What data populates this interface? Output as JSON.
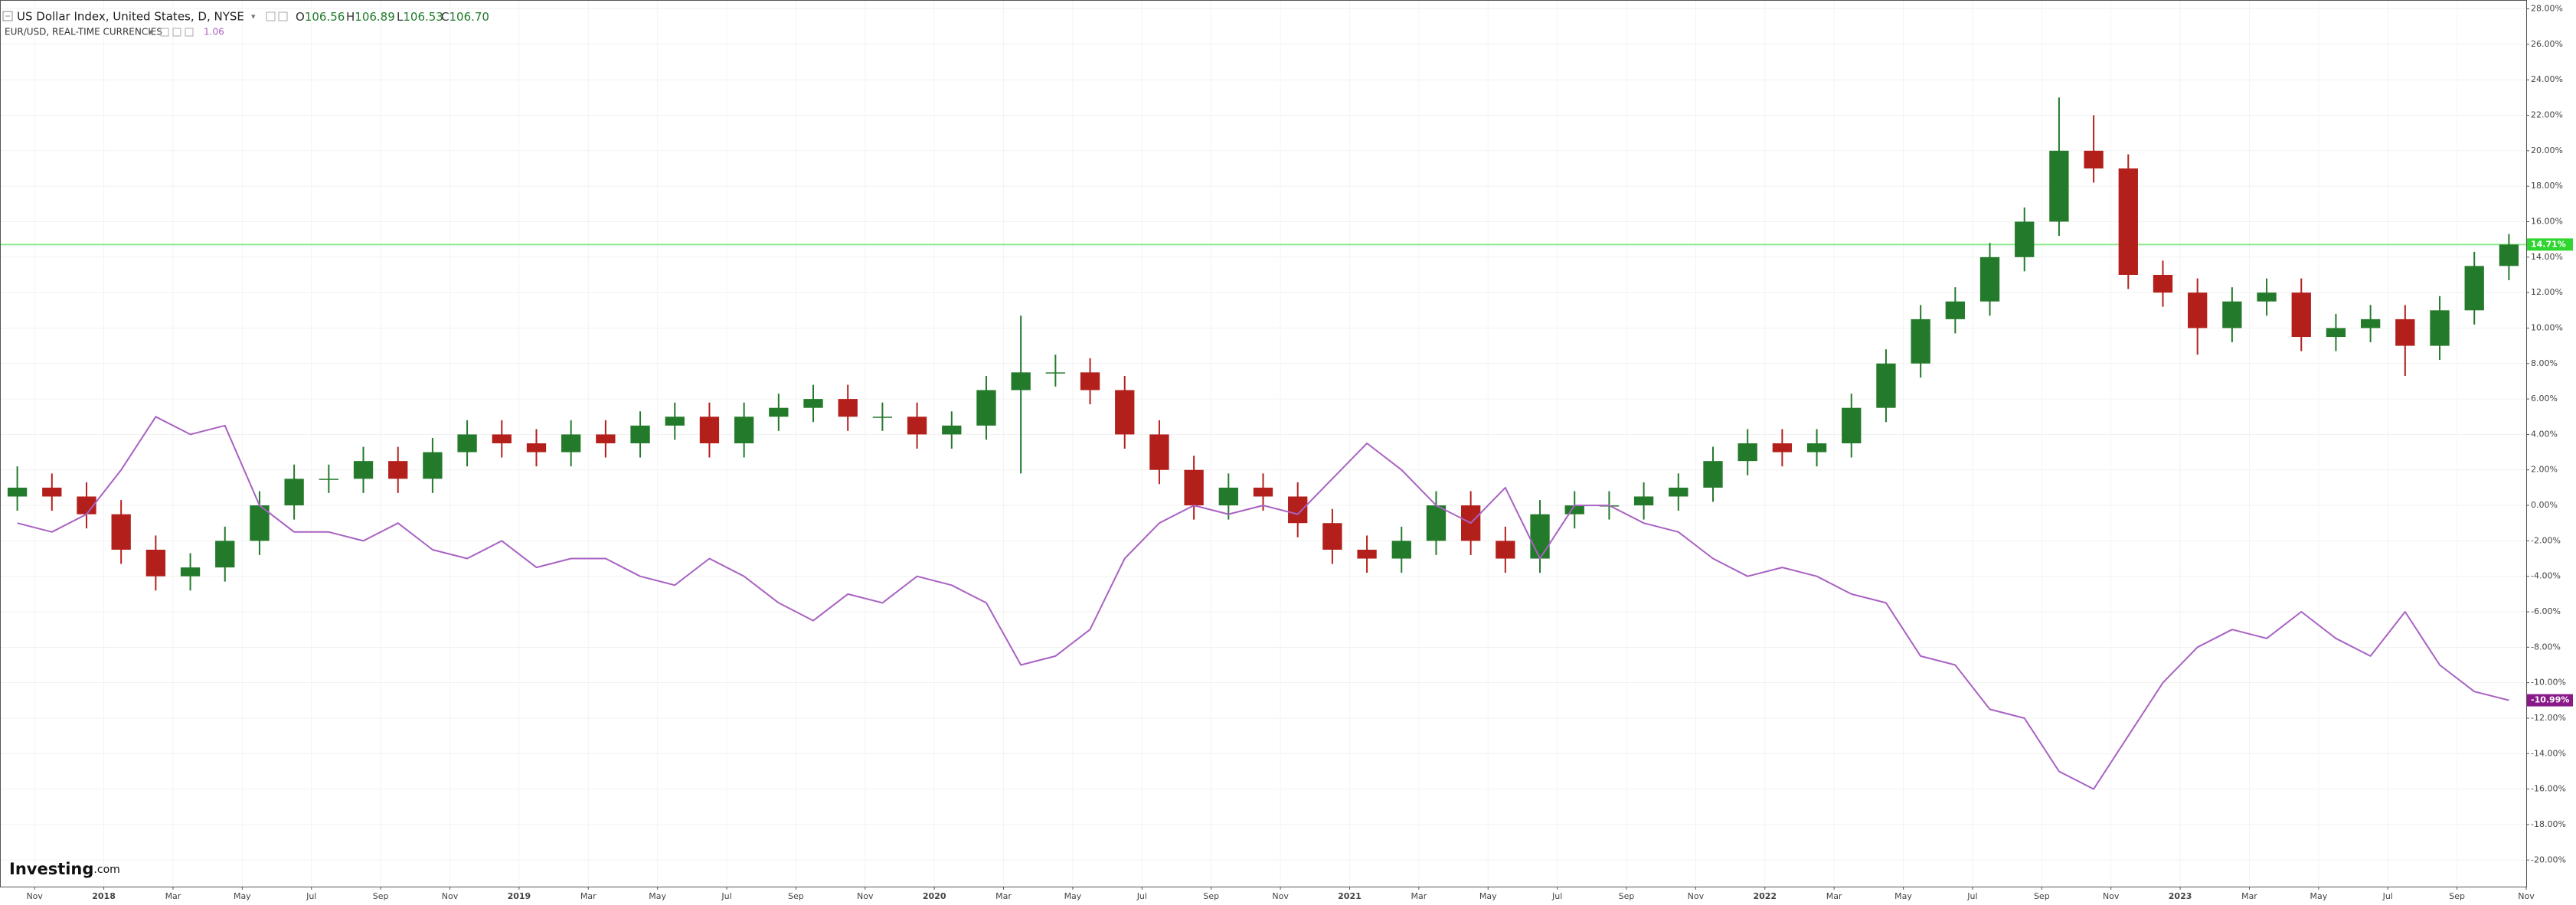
{
  "chart_data": {
    "type": "candlestick",
    "x": [
      "2017-10",
      "2017-11",
      "2017-12",
      "2018-01",
      "2018-02",
      "2018-03",
      "2018-04",
      "2018-05",
      "2018-06",
      "2018-07",
      "2018-08",
      "2018-09",
      "2018-10",
      "2018-11",
      "2018-12",
      "2019-01",
      "2019-02",
      "2019-03",
      "2019-04",
      "2019-05",
      "2019-06",
      "2019-07",
      "2019-08",
      "2019-09",
      "2019-10",
      "2019-11",
      "2019-12",
      "2020-01",
      "2020-02",
      "2020-03",
      "2020-04",
      "2020-05",
      "2020-06",
      "2020-07",
      "2020-08",
      "2020-09",
      "2020-10",
      "2020-11",
      "2020-12",
      "2021-01",
      "2021-02",
      "2021-03",
      "2021-04",
      "2021-05",
      "2021-06",
      "2021-07",
      "2021-08",
      "2021-09",
      "2021-10",
      "2021-11",
      "2021-12",
      "2022-01",
      "2022-02",
      "2022-03",
      "2022-04",
      "2022-05",
      "2022-06",
      "2022-07",
      "2022-08",
      "2022-09",
      "2022-10",
      "2022-11",
      "2022-12",
      "2023-01",
      "2023-02",
      "2023-03",
      "2023-04",
      "2023-05",
      "2023-06",
      "2023-07",
      "2023-08",
      "2023-09",
      "2023-10"
    ],
    "xlim": [
      "2017-10",
      "2023-11"
    ],
    "xticks": [
      {
        "value": "2017-11",
        "label": "Nov"
      },
      {
        "value": "2018-01",
        "label": "2018"
      },
      {
        "value": "2018-03",
        "label": "Mar"
      },
      {
        "value": "2018-05",
        "label": "May"
      },
      {
        "value": "2018-07",
        "label": "Jul"
      },
      {
        "value": "2018-09",
        "label": "Sep"
      },
      {
        "value": "2018-11",
        "label": "Nov"
      },
      {
        "value": "2019-01",
        "label": "2019"
      },
      {
        "value": "2019-03",
        "label": "Mar"
      },
      {
        "value": "2019-05",
        "label": "May"
      },
      {
        "value": "2019-07",
        "label": "Jul"
      },
      {
        "value": "2019-09",
        "label": "Sep"
      },
      {
        "value": "2019-11",
        "label": "Nov"
      },
      {
        "value": "2020-01",
        "label": "2020"
      },
      {
        "value": "2020-03",
        "label": "Mar"
      },
      {
        "value": "2020-05",
        "label": "May"
      },
      {
        "value": "2020-07",
        "label": "Jul"
      },
      {
        "value": "2020-09",
        "label": "Sep"
      },
      {
        "value": "2020-11",
        "label": "Nov"
      },
      {
        "value": "2021-01",
        "label": "2021"
      },
      {
        "value": "2021-03",
        "label": "Mar"
      },
      {
        "value": "2021-05",
        "label": "May"
      },
      {
        "value": "2021-07",
        "label": "Jul"
      },
      {
        "value": "2021-09",
        "label": "Sep"
      },
      {
        "value": "2021-11",
        "label": "Nov"
      },
      {
        "value": "2022-01",
        "label": "2022"
      },
      {
        "value": "2022-03",
        "label": "Mar"
      },
      {
        "value": "2022-05",
        "label": "May"
      },
      {
        "value": "2022-07",
        "label": "Jul"
      },
      {
        "value": "2022-09",
        "label": "Sep"
      },
      {
        "value": "2022-11",
        "label": "Nov"
      },
      {
        "value": "2023-01",
        "label": "2023"
      },
      {
        "value": "2023-03",
        "label": "Mar"
      },
      {
        "value": "2023-05",
        "label": "May"
      },
      {
        "value": "2023-07",
        "label": "Jul"
      },
      {
        "value": "2023-09",
        "label": "Sep"
      },
      {
        "value": "2023-11",
        "label": "Nov"
      }
    ],
    "ylim": [
      -21.5,
      28.5
    ],
    "yticks": [
      {
        "value": 28,
        "label": "28.00%"
      },
      {
        "value": 26,
        "label": "26.00%"
      },
      {
        "value": 24,
        "label": "24.00%"
      },
      {
        "value": 22,
        "label": "22.00%"
      },
      {
        "value": 20,
        "label": "20.00%"
      },
      {
        "value": 18,
        "label": "18.00%"
      },
      {
        "value": 16,
        "label": "16.00%"
      },
      {
        "value": 14,
        "label": "14.00%"
      },
      {
        "value": 12,
        "label": "12.00%"
      },
      {
        "value": 10,
        "label": "10.00%"
      },
      {
        "value": 8,
        "label": "8.00%"
      },
      {
        "value": 6,
        "label": "6.00%"
      },
      {
        "value": 4,
        "label": "4.00%"
      },
      {
        "value": 2,
        "label": "2.00%"
      },
      {
        "value": 0,
        "label": "0.00%"
      },
      {
        "value": -2,
        "label": "-2.00%"
      },
      {
        "value": -4,
        "label": "-4.00%"
      },
      {
        "value": -6,
        "label": "-6.00%"
      },
      {
        "value": -8,
        "label": "-8.00%"
      },
      {
        "value": -10,
        "label": "-10.00%"
      },
      {
        "value": -12,
        "label": "-12.00%"
      },
      {
        "value": -14,
        "label": "-14.00%"
      },
      {
        "value": -16,
        "label": "-16.00%"
      },
      {
        "value": -18,
        "label": "-18.00%"
      },
      {
        "value": -20,
        "label": "-20.00%"
      }
    ],
    "grid": true,
    "series": [
      {
        "name": "US Dollar Index, United States, D, NYSE",
        "type": "candlestick",
        "up_color": "#237a2a",
        "down_color": "#b3201c",
        "open": [
          0.5,
          1,
          0.5,
          -0.5,
          -2.5,
          -4,
          -3.5,
          -2,
          0,
          1.5,
          1.5,
          2.5,
          1.5,
          3,
          4,
          3.5,
          3,
          4,
          3.5,
          4.5,
          5,
          3.5,
          5,
          5.5,
          6,
          5,
          5,
          4,
          4.5,
          6.5,
          7.5,
          7.5,
          6.5,
          4,
          2,
          0,
          1,
          0.5,
          -1,
          -2.5,
          -3,
          -2,
          0,
          -2,
          -3,
          -0.5,
          0,
          0,
          0.5,
          1,
          2.5,
          3.5,
          3,
          3.5,
          5.5,
          8,
          10.5,
          11.5,
          14,
          16,
          20,
          19,
          13,
          12,
          10,
          11.5,
          12,
          9.5,
          10,
          10.5,
          9,
          11,
          13.5
        ],
        "high": [
          2.2,
          1.8,
          1.3,
          0.3,
          -1.7,
          -2.7,
          -1.2,
          0.8,
          2.3,
          2.3,
          3.3,
          3.3,
          3.8,
          4.8,
          4.8,
          4.3,
          4.8,
          4.8,
          5.3,
          5.8,
          5.8,
          5.8,
          6.3,
          6.8,
          6.8,
          5.8,
          5.8,
          5.3,
          7.3,
          10.7,
          8.5,
          8.3,
          7.3,
          4.8,
          2.8,
          1.8,
          1.8,
          1.3,
          -0.2,
          -1.7,
          -1.2,
          0.8,
          0.8,
          -1.2,
          0.3,
          0.8,
          0.8,
          1.3,
          1.8,
          3.3,
          4.3,
          4.3,
          4.3,
          6.3,
          8.8,
          11.3,
          12.3,
          14.8,
          16.8,
          23,
          22,
          19.8,
          13.8,
          12.8,
          12.3,
          12.8,
          12.8,
          10.8,
          11.3,
          11.3,
          11.8,
          14.3,
          15.3
        ],
        "low": [
          -0.3,
          -0.3,
          -1.3,
          -3.3,
          -4.8,
          -4.8,
          -4.3,
          -2.8,
          -0.8,
          0.7,
          0.7,
          0.7,
          0.7,
          2.2,
          2.7,
          2.2,
          2.2,
          2.7,
          2.7,
          3.7,
          2.7,
          2.7,
          4.2,
          4.7,
          4.2,
          4.2,
          3.2,
          3.2,
          3.7,
          1.8,
          6.7,
          5.7,
          3.2,
          1.2,
          -0.8,
          -0.8,
          -0.3,
          -1.8,
          -3.3,
          -3.8,
          -3.8,
          -2.8,
          -2.8,
          -3.8,
          -3.8,
          -1.3,
          -0.8,
          -0.8,
          -0.3,
          0.2,
          1.7,
          2.2,
          2.2,
          2.7,
          4.7,
          7.2,
          9.7,
          10.7,
          13.2,
          15.2,
          18.2,
          12.2,
          11.2,
          8.5,
          9.2,
          10.7,
          8.7,
          8.7,
          9.2,
          7.3,
          8.2,
          10.2,
          12.7
        ],
        "close": [
          1,
          0.5,
          -0.5,
          -2.5,
          -4,
          -3.5,
          -2,
          0,
          1.5,
          1.5,
          2.5,
          1.5,
          3,
          4,
          3.5,
          3,
          4,
          3.5,
          4.5,
          5,
          3.5,
          5,
          5.5,
          6,
          5,
          5,
          4,
          4.5,
          6.5,
          7.5,
          7.5,
          6.5,
          4,
          2,
          0,
          1,
          0.5,
          -1,
          -2.5,
          -3,
          -2,
          0,
          -2,
          -3,
          -0.5,
          0,
          0,
          0.5,
          1,
          2.5,
          3.5,
          3,
          3.5,
          5.5,
          8,
          10.5,
          11.5,
          14,
          16,
          20,
          19,
          13,
          12,
          10,
          11.5,
          12,
          9.5,
          10,
          10.5,
          9,
          11,
          13.5,
          14.71
        ],
        "last_label": {
          "value": 14.71,
          "label": "14.71%"
        },
        "last_color": "#2fd62f",
        "level_color": "#8fea8f"
      },
      {
        "name": "EUR/USD, REAL-TIME CURRENCIES",
        "type": "line",
        "color": "#a862c2",
        "values": [
          -1,
          -1.5,
          -0.5,
          2,
          5,
          4,
          4.5,
          0,
          -1.5,
          -1.5,
          -2,
          -1,
          -2.5,
          -3,
          -2,
          -3.5,
          -3,
          -3,
          -4,
          -4.5,
          -3,
          -4,
          -5.5,
          -6.5,
          -5,
          -5.5,
          -4,
          -4.5,
          -5.5,
          -9,
          -8.5,
          -7,
          -3,
          -1,
          0,
          -0.5,
          0,
          -0.5,
          1.5,
          3.5,
          2,
          0,
          -1,
          1,
          -3,
          0,
          0,
          -1,
          -1.5,
          -3,
          -4,
          -3.5,
          -4,
          -5,
          -5.5,
          -8.5,
          -9,
          -11.5,
          -12,
          -15,
          -16,
          -13,
          -10,
          -8,
          -7,
          -7.5,
          -6,
          -7.5,
          -8.5,
          -6,
          -9,
          -10.5,
          -10.99
        ],
        "last_label": {
          "value": -10.99,
          "label": "-10.99%"
        },
        "last_color": "#8a1a8a"
      }
    ]
  },
  "header": {
    "quote": [
      {
        "label": "O",
        "value": "106.56"
      },
      {
        "label": "H",
        "value": "106.89"
      },
      {
        "label": "L",
        "value": "106.53"
      },
      {
        "label": "C",
        "value": "106.70"
      }
    ],
    "pair_value": "1.06"
  },
  "branding": {
    "name": "Investing",
    "suffix": ".com"
  }
}
